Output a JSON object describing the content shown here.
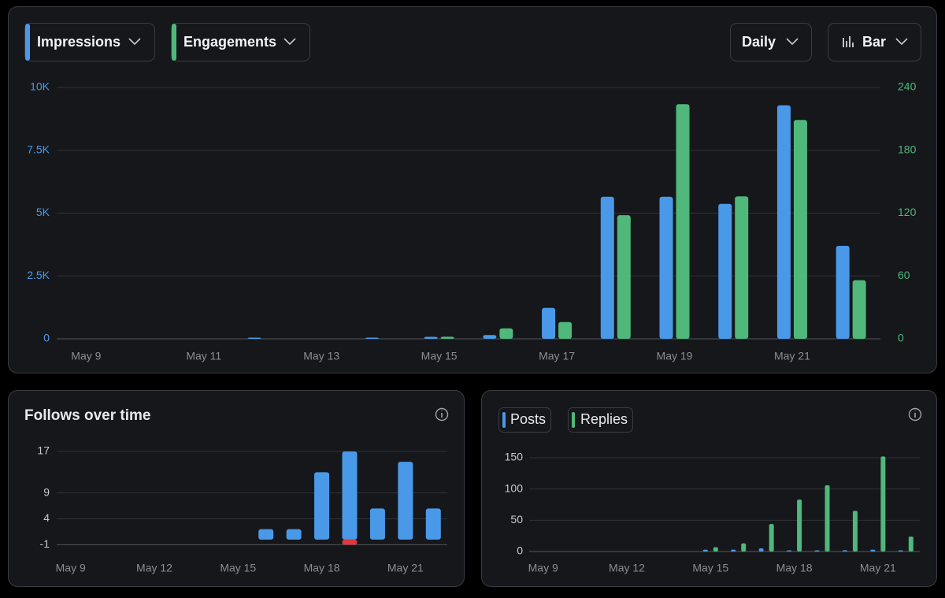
{
  "controls": {
    "interval": "Daily",
    "chart_style": "Bar"
  },
  "chart_data": [
    {
      "type": "bar",
      "categories": [
        "May 9",
        null,
        "May 11",
        null,
        "May 13",
        null,
        "May 15",
        null,
        "May 17",
        null,
        "May 19",
        null,
        "May 21",
        null
      ],
      "series": [
        {
          "name": "Impressions",
          "color": "#4a99e9",
          "values": [
            0,
            0,
            0,
            20,
            0,
            15,
            80,
            150,
            1230,
            5650,
            5650,
            5370,
            9290,
            3700
          ]
        },
        {
          "name": "Engagements",
          "color": "#4fb87a",
          "axis": "y2",
          "values": [
            0,
            0,
            0,
            0,
            0,
            0,
            2,
            10,
            16,
            118,
            224,
            136,
            209,
            56
          ]
        }
      ],
      "ylim": [
        0,
        10000
      ],
      "yticks": [
        0,
        {
          "value": 2500,
          "label": "2.5K"
        },
        {
          "value": 5000,
          "label": "5K"
        },
        {
          "value": 7500,
          "label": "7.5K"
        },
        {
          "value": 10000,
          "label": "10K"
        }
      ],
      "y2lim": [
        0,
        240
      ],
      "y2ticks": [
        0,
        60,
        120,
        180,
        240
      ],
      "grid": true
    },
    {
      "type": "bar",
      "title": "Follows over time",
      "categories": [
        "May 9",
        null,
        null,
        "May 12",
        null,
        null,
        "May 15",
        null,
        null,
        "May 18",
        null,
        null,
        "May 21",
        null
      ],
      "series": [
        {
          "color": "#4a99e9",
          "values": [
            0,
            0,
            0,
            0,
            0,
            0,
            0,
            2,
            2,
            13,
            17,
            6,
            15,
            6
          ]
        },
        {
          "color": "#e0383e",
          "values": [
            null,
            null,
            null,
            null,
            null,
            null,
            null,
            null,
            null,
            null,
            -1,
            null,
            null,
            null
          ]
        }
      ],
      "ylim": [
        -2,
        17
      ],
      "yticks": [
        -1,
        4,
        9,
        17
      ],
      "grid": true
    },
    {
      "type": "bar",
      "categories": [
        "May 9",
        null,
        null,
        "May 12",
        null,
        null,
        "May 15",
        null,
        null,
        "May 18",
        null,
        null,
        "May 21",
        null
      ],
      "series": [
        {
          "name": "Posts",
          "color": "#4a99e9",
          "values": [
            0,
            0,
            0,
            0,
            0,
            0,
            3,
            3,
            5,
            1,
            1,
            2,
            3,
            1
          ]
        },
        {
          "name": "Replies",
          "color": "#4fb87a",
          "values": [
            0,
            0,
            0,
            0,
            0,
            0,
            7,
            13,
            44,
            83,
            106,
            65,
            152,
            24
          ]
        }
      ],
      "ylim": [
        0,
        150
      ],
      "yticks": [
        0,
        50,
        100,
        150
      ],
      "grid": true
    }
  ]
}
